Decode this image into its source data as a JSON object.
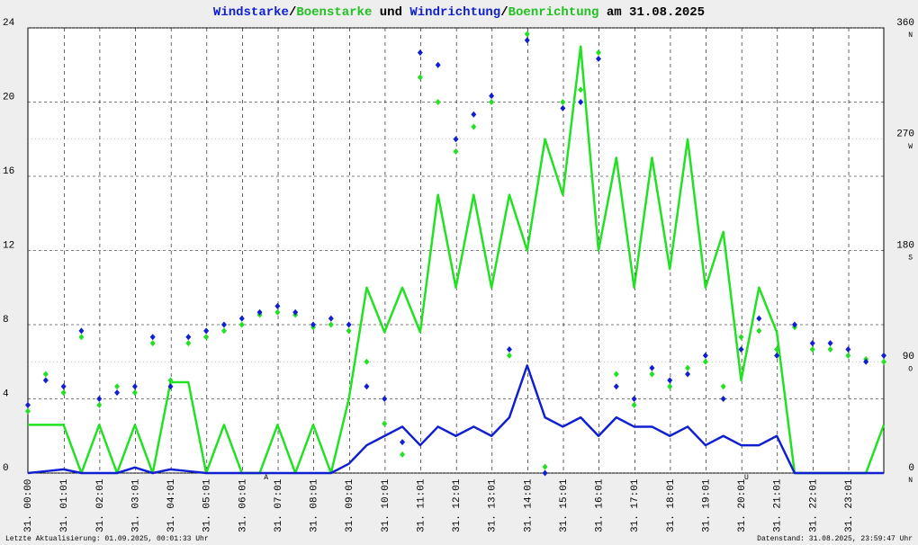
{
  "chart_data": {
    "type": "line",
    "title_parts": [
      "/",
      " und ",
      "/",
      " am 31.08.2025"
    ],
    "footer_left": "Letzte Aktualisierung: 01.09.2025, 00:01:33 Uhr",
    "footer_right": "Datenstand: 31.08.2025, 23:59:47 Uhr",
    "x": [
      0,
      0.5,
      1,
      1.5,
      2,
      2.5,
      3,
      3.5,
      4,
      4.5,
      5,
      5.5,
      6,
      6.5,
      7,
      7.5,
      8,
      8.5,
      9,
      9.5,
      10,
      10.5,
      11,
      11.5,
      12,
      12.5,
      13,
      13.5,
      14,
      14.5,
      15,
      15.5,
      16,
      16.5,
      17,
      17.5,
      18,
      18.5,
      19,
      19.5,
      20,
      20.5,
      21,
      21.5,
      22,
      22.5,
      23,
      23.5,
      24
    ],
    "xlim": [
      0,
      24
    ],
    "xticks": [
      {
        "value": 0,
        "label": "31. 00:00"
      },
      {
        "value": 1.0167,
        "label": "31. 01:01"
      },
      {
        "value": 2.0167,
        "label": "31. 02:01"
      },
      {
        "value": 3.0167,
        "label": "31. 03:01"
      },
      {
        "value": 4.0167,
        "label": "31. 04:01"
      },
      {
        "value": 5.0167,
        "label": "31. 05:01"
      },
      {
        "value": 6.0167,
        "label": "31. 06:01"
      },
      {
        "value": 7.0167,
        "label": "31. 07:01"
      },
      {
        "value": 8.0167,
        "label": "31. 08:01"
      },
      {
        "value": 9.0167,
        "label": "31. 09:01"
      },
      {
        "value": 10.0167,
        "label": "31. 10:01"
      },
      {
        "value": 11.0167,
        "label": "31. 11:01"
      },
      {
        "value": 12.0167,
        "label": "31. 12:01"
      },
      {
        "value": 13.0167,
        "label": "31. 13:01"
      },
      {
        "value": 14.0167,
        "label": "31. 14:01"
      },
      {
        "value": 15.0167,
        "label": "31. 15:01"
      },
      {
        "value": 16.0167,
        "label": "31. 16:01"
      },
      {
        "value": 17.0167,
        "label": "31. 17:01"
      },
      {
        "value": 18.0167,
        "label": "31. 18:01"
      },
      {
        "value": 19.0167,
        "label": "31. 19:01"
      },
      {
        "value": 20.0167,
        "label": "31. 20:01"
      },
      {
        "value": 21.0167,
        "label": "31. 21:01"
      },
      {
        "value": 22.0167,
        "label": "31. 22:01"
      },
      {
        "value": 23.0167,
        "label": "31. 23:01"
      }
    ],
    "ylim": [
      0,
      24
    ],
    "yticks": [
      0,
      4,
      8,
      12,
      16,
      20,
      24
    ],
    "y2lim": [
      0,
      360
    ],
    "y2ticks": [
      0,
      90,
      180,
      270,
      360
    ],
    "compass": [
      {
        "value": 0,
        "label": "N"
      },
      {
        "value": 90,
        "label": "O"
      },
      {
        "value": 180,
        "label": "S"
      },
      {
        "value": 270,
        "label": "W"
      },
      {
        "value": 360,
        "label": "N"
      }
    ],
    "sun_events": [
      {
        "value": 6.68,
        "label": "A"
      },
      {
        "value": 20.15,
        "label": "U"
      }
    ],
    "grid": true,
    "series": [
      {
        "name": "Windstarke",
        "color": "#1020d0",
        "style": "line",
        "values": [
          0,
          0.1,
          0.2,
          0,
          0,
          0,
          0.3,
          0,
          0.2,
          0.1,
          0,
          0,
          0,
          0,
          0,
          0,
          0,
          0,
          0.5,
          1.5,
          2,
          2.5,
          1.5,
          2.5,
          2,
          2.5,
          2,
          3,
          5.8,
          3,
          2.5,
          3,
          2,
          3,
          2.5,
          2.5,
          2,
          2.5,
          1.5,
          2,
          1.5,
          1.5,
          2,
          0,
          0,
          0,
          0,
          0,
          0
        ]
      },
      {
        "name": "Boenstarke",
        "color": "#22e022",
        "style": "line",
        "values": [
          2.6,
          2.6,
          2.6,
          0,
          2.6,
          0,
          2.6,
          0,
          4.9,
          4.9,
          0,
          2.6,
          0,
          0,
          2.6,
          0,
          2.6,
          0,
          4,
          10,
          7.6,
          10,
          7.6,
          15,
          10,
          15,
          10,
          15,
          12,
          18,
          15,
          23,
          12,
          17,
          10,
          17,
          11,
          18,
          10,
          13,
          5,
          10,
          7.6,
          0,
          0,
          0,
          0,
          0,
          2.6
        ]
      },
      {
        "name": "Windrichtung",
        "color": "#1020d0",
        "style": "points",
        "axis": "y2",
        "values": [
          55,
          75,
          70,
          115,
          60,
          65,
          70,
          110,
          70,
          110,
          115,
          120,
          125,
          130,
          135,
          130,
          120,
          125,
          120,
          70,
          60,
          25,
          340,
          330,
          270,
          290,
          305,
          100,
          350,
          0,
          295,
          300,
          335,
          70,
          60,
          85,
          75,
          80,
          95,
          60,
          100,
          125,
          95,
          120,
          105,
          105,
          100,
          90,
          95
        ]
      },
      {
        "name": "Boenrichtung",
        "color": "#22e022",
        "style": "points",
        "axis": "y2",
        "values": [
          50,
          80,
          65,
          110,
          55,
          70,
          65,
          105,
          75,
          105,
          110,
          115,
          120,
          128,
          130,
          128,
          118,
          120,
          115,
          90,
          40,
          15,
          320,
          300,
          260,
          280,
          300,
          95,
          355,
          5,
          300,
          310,
          340,
          80,
          55,
          80,
          70,
          85,
          90,
          70,
          110,
          115,
          100,
          118,
          100,
          100,
          95,
          92,
          90
        ]
      }
    ]
  }
}
